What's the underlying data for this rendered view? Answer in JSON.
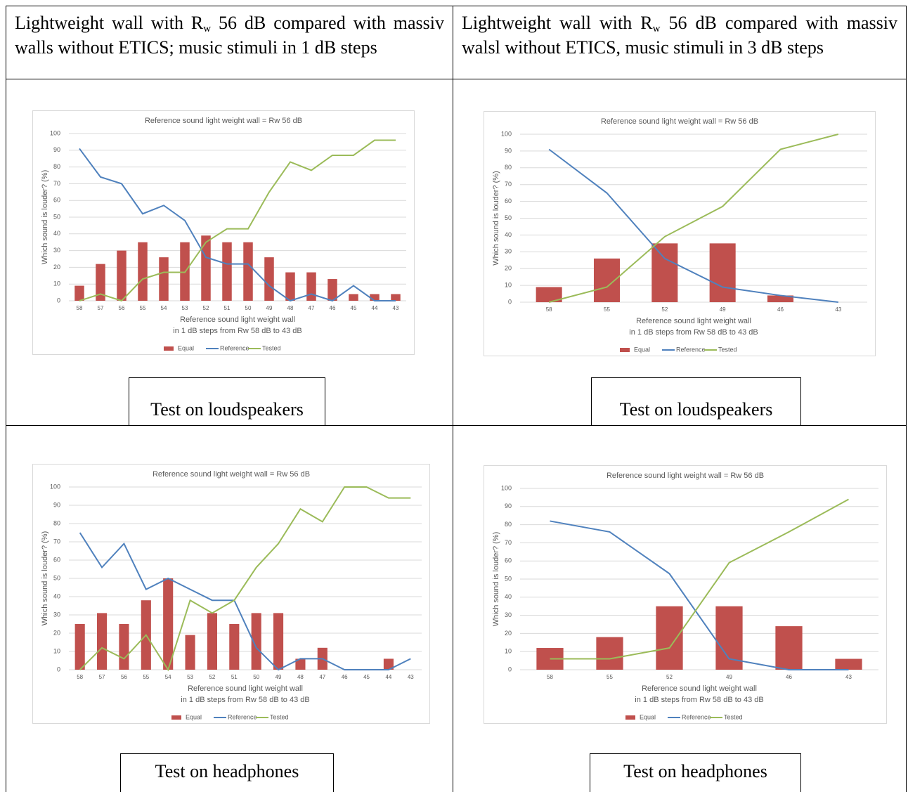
{
  "headers": [
    {
      "pre": "Lightweight wall with R",
      "sub": "w",
      "post": " 56 dB compared with massiv walls without ETICS; music stimuli in 1 dB steps"
    },
    {
      "pre": "Lightweight wall with R",
      "sub": "w",
      "post": " 56 dB compared with massiv walsl without ETICS, music stimuli in 3 dB steps"
    }
  ],
  "captions": [
    "Test on loudspeakers",
    "Test on loudspeakers",
    "Test on headphones",
    "Test on headphones"
  ],
  "chart_data": [
    {
      "type": "combo",
      "title": "Reference sound light weight wall = Rw 56 dB",
      "y_label": "Which sound is louder? (%)",
      "x_label": [
        "Reference sound light weight wall",
        "in 1 dB steps from Rw 58 dB to 43 dB"
      ],
      "categories": [
        "58",
        "57",
        "56",
        "55",
        "54",
        "53",
        "52",
        "51",
        "50",
        "49",
        "48",
        "47",
        "46",
        "45",
        "44",
        "43"
      ],
      "series": [
        {
          "name": "Equal",
          "type": "bar",
          "color": "#c0504d",
          "values": [
            9,
            22,
            30,
            35,
            26,
            35,
            39,
            35,
            35,
            26,
            17,
            17,
            13,
            4,
            4,
            4
          ]
        },
        {
          "name": "Reference",
          "type": "line",
          "color": "#4f81bd",
          "values": [
            91,
            74,
            70,
            52,
            57,
            48,
            26,
            22,
            22,
            9,
            0,
            4,
            0,
            9,
            0,
            0
          ]
        },
        {
          "name": "Tested",
          "type": "line",
          "color": "#9bbb59",
          "values": [
            0,
            4,
            0,
            13,
            17,
            17,
            35,
            43,
            43,
            65,
            83,
            78,
            87,
            87,
            96,
            96
          ]
        }
      ],
      "ylim": [
        0,
        100
      ],
      "yticks": [
        0,
        10,
        20,
        30,
        40,
        50,
        60,
        70,
        80,
        90,
        100
      ],
      "grid": true,
      "legend": "bottom"
    },
    {
      "type": "combo",
      "title": "Reference sound light weight wall = Rw 56 dB",
      "y_label": "Which sound is louder? (%)",
      "x_label": [
        "Reference sound light weight wall",
        "in 1 dB steps from Rw 58 dB to 43 dB"
      ],
      "categories": [
        "58",
        "55",
        "52",
        "49",
        "46",
        "43"
      ],
      "series": [
        {
          "name": "Equal",
          "type": "bar",
          "color": "#c0504d",
          "values": [
            9,
            26,
            35,
            35,
            4,
            0
          ]
        },
        {
          "name": "Reference",
          "type": "line",
          "color": "#4f81bd",
          "values": [
            91,
            65,
            26,
            9,
            4,
            0
          ]
        },
        {
          "name": "Tested",
          "type": "line",
          "color": "#9bbb59",
          "values": [
            0,
            9,
            39,
            57,
            91,
            100
          ]
        }
      ],
      "ylim": [
        0,
        100
      ],
      "yticks": [
        0,
        10,
        20,
        30,
        40,
        50,
        60,
        70,
        80,
        90,
        100
      ],
      "grid": true,
      "legend": "bottom"
    },
    {
      "type": "combo",
      "title": "Reference sound light weight wall = Rw 56 dB",
      "y_label": "Which sound is louder? (%)",
      "x_label": [
        "Reference sound light weight wall",
        "in 1 dB steps from Rw 58 dB to 43 dB"
      ],
      "categories": [
        "58",
        "57",
        "56",
        "55",
        "54",
        "53",
        "52",
        "51",
        "50",
        "49",
        "48",
        "47",
        "46",
        "45",
        "44",
        "43"
      ],
      "series": [
        {
          "name": "Equal",
          "type": "bar",
          "color": "#c0504d",
          "values": [
            25,
            31,
            25,
            38,
            50,
            19,
            31,
            25,
            31,
            31,
            6,
            12,
            0,
            0,
            6,
            0
          ]
        },
        {
          "name": "Reference",
          "type": "line",
          "color": "#4f81bd",
          "values": [
            75,
            56,
            69,
            44,
            50,
            44,
            38,
            38,
            12,
            0,
            6,
            6,
            0,
            0,
            0,
            6
          ]
        },
        {
          "name": "Tested",
          "type": "line",
          "color": "#9bbb59",
          "values": [
            0,
            12,
            6,
            19,
            0,
            38,
            31,
            38,
            56,
            69,
            88,
            81,
            100,
            100,
            94,
            94
          ]
        }
      ],
      "ylim": [
        0,
        100
      ],
      "yticks": [
        0,
        10,
        20,
        30,
        40,
        50,
        60,
        70,
        80,
        90,
        100
      ],
      "grid": true,
      "legend": "bottom"
    },
    {
      "type": "combo",
      "title": "Reference sound light weight wall = Rw 56 dB",
      "y_label": "Which sound is louder? (%)",
      "x_label": [
        "Reference sound light weight wall",
        "in 1 dB steps from Rw 58 dB to 43 dB"
      ],
      "categories": [
        "58",
        "55",
        "52",
        "49",
        "46",
        "43"
      ],
      "series": [
        {
          "name": "Equal",
          "type": "bar",
          "color": "#c0504d",
          "values": [
            12,
            18,
            35,
            35,
            24,
            6
          ]
        },
        {
          "name": "Reference",
          "type": "line",
          "color": "#4f81bd",
          "values": [
            82,
            76,
            53,
            6,
            0,
            0
          ]
        },
        {
          "name": "Tested",
          "type": "line",
          "color": "#9bbb59",
          "values": [
            6,
            6,
            12,
            59,
            76,
            94
          ]
        }
      ],
      "ylim": [
        0,
        100
      ],
      "yticks": [
        0,
        10,
        20,
        30,
        40,
        50,
        60,
        70,
        80,
        90,
        100
      ],
      "grid": true,
      "legend": "bottom"
    }
  ]
}
